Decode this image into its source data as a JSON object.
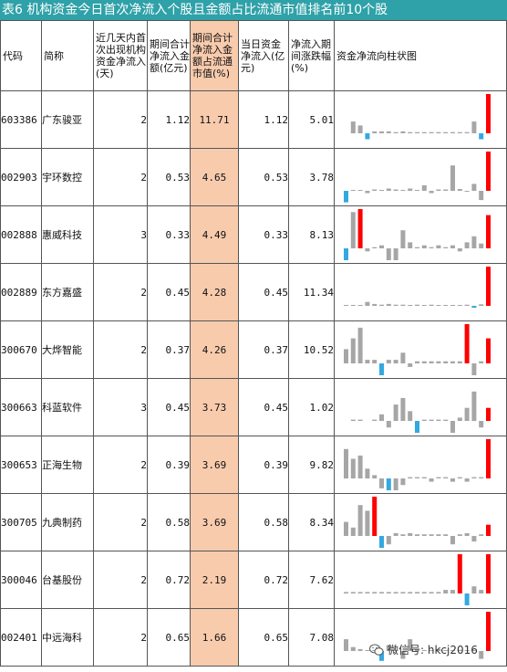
{
  "title": "表6  机构资金今日首次净流入个股且金额占比流通市值排名前10个股",
  "headers": {
    "code": "代码",
    "name": "简称",
    "days": "近几天内首次出现机构资金净流入(天)",
    "period_net": "期间合计净流入金额(亿元)",
    "period_ratio": "期间合计净流入金额占流通市值(%)",
    "today_net": "当日资金净流入(亿元)",
    "period_chg": "净流入期间涨跌幅(%)",
    "chart": "资金净流向柱状图"
  },
  "rows": [
    {
      "code": "603386",
      "name": "广东骏亚",
      "days": "2",
      "period_net": "1.12",
      "period_ratio": "11.71",
      "today_net": "1.12",
      "period_chg": "5.01",
      "bars": [
        0,
        0.3,
        0.2,
        -0.15,
        0.05,
        0.05,
        0.05,
        0.03,
        0.05,
        0.03,
        0.03,
        0.03,
        0.03,
        0.03,
        0.03,
        0.03,
        0.03,
        0.03,
        0.3,
        -0.15,
        1.0
      ]
    },
    {
      "code": "002903",
      "name": "宇环数控",
      "days": "2",
      "period_net": "0.53",
      "period_ratio": "4.65",
      "today_net": "0.53",
      "period_chg": "3.78",
      "bars": [
        -0.25,
        0.02,
        0.02,
        -0.05,
        0.03,
        0.02,
        0.05,
        0.03,
        0.02,
        0.05,
        0.02,
        0.12,
        -0.05,
        0.03,
        0.03,
        0.55,
        0.04,
        -0.02,
        0.15,
        -0.2,
        0.85
      ]
    },
    {
      "code": "002888",
      "name": "惠威科技",
      "days": "3",
      "period_net": "0.33",
      "period_ratio": "4.49",
      "today_net": "0.33",
      "period_chg": "8.13",
      "bars": [
        -0.45,
        0.6,
        0.65,
        -0.05,
        0.02,
        0.05,
        -0.3,
        -0.2,
        0.3,
        0.1,
        0.02,
        0.05,
        0.02,
        0.05,
        0.02,
        0.05,
        -0.05,
        0.1,
        0.2,
        0.08,
        0.55
      ]
    },
    {
      "code": "002889",
      "name": "东方嘉盛",
      "days": "2",
      "period_net": "0.45",
      "period_ratio": "4.28",
      "today_net": "0.45",
      "period_chg": "11.34",
      "bars": [
        0.02,
        0.02,
        0.02,
        0.1,
        0.05,
        0.03,
        0.05,
        0.03,
        0.03,
        0.02,
        0.03,
        0.02,
        0.03,
        0.02,
        0.02,
        0.02,
        0.02,
        0.03,
        -0.05,
        0.04,
        1.0
      ]
    },
    {
      "code": "300670",
      "name": "大烨智能",
      "days": "2",
      "period_net": "0.37",
      "period_ratio": "4.26",
      "today_net": "0.37",
      "period_chg": "10.52",
      "bars": [
        0.2,
        0.35,
        0.5,
        0.05,
        0.05,
        -0.4,
        0.05,
        0.05,
        0.15,
        -0.05,
        0.03,
        0.03,
        0.03,
        0.03,
        0.03,
        0.03,
        0.03,
        0.55,
        -0.35,
        0.03,
        0.35
      ]
    },
    {
      "code": "300663",
      "name": "科蓝软件",
      "days": "3",
      "period_net": "0.45",
      "period_ratio": "3.73",
      "today_net": "0.45",
      "period_chg": "1.02",
      "bars": [
        0,
        0.02,
        0.02,
        0,
        0.02,
        0.1,
        -0.1,
        0.25,
        0.35,
        0.15,
        -0.6,
        0.02,
        0.02,
        0.02,
        0.02,
        -0.2,
        0.05,
        0.2,
        0.45,
        -0.1,
        0.2
      ]
    },
    {
      "code": "300653",
      "name": "正海生物",
      "days": "2",
      "period_net": "0.39",
      "period_ratio": "3.69",
      "today_net": "0.39",
      "period_chg": "9.82",
      "bars": [
        0.45,
        0.3,
        0.35,
        0.15,
        0.05,
        -0.15,
        -0.4,
        -0.25,
        -0.1,
        0.02,
        0.02,
        0.02,
        -0.05,
        0.02,
        0.02,
        -0.05,
        0.02,
        -0.05,
        0.02,
        0.02,
        0.6
      ]
    },
    {
      "code": "300705",
      "name": "九典制药",
      "days": "2",
      "period_net": "0.58",
      "period_ratio": "3.69",
      "today_net": "0.58",
      "period_chg": "8.34",
      "bars": [
        0.25,
        0.15,
        0.55,
        0.45,
        0.7,
        -0.25,
        -0.15,
        0.05,
        0.03,
        0.05,
        0.03,
        0.03,
        0.03,
        0.03,
        0.03,
        -0.15,
        0.03,
        0.05,
        -0.1,
        0.03,
        0.2
      ]
    },
    {
      "code": "300046",
      "name": "台基股份",
      "days": "2",
      "period_net": "0.72",
      "period_ratio": "2.19",
      "today_net": "0.72",
      "period_chg": "7.62",
      "bars": [
        0.02,
        0.02,
        0.02,
        0.02,
        0.02,
        0.02,
        0.02,
        0.02,
        0.02,
        0.02,
        0.02,
        0.02,
        0.02,
        0.02,
        0.05,
        0.05,
        0.55,
        -0.35,
        0.1,
        0.05,
        0.55
      ]
    },
    {
      "code": "002401",
      "name": "中远海科",
      "days": "2",
      "period_net": "0.65",
      "period_ratio": "1.66",
      "today_net": "0.65",
      "period_chg": "7.08",
      "bars": [
        0.3,
        0.1,
        0.05,
        0.02,
        0.02,
        -0.25,
        0.15,
        0.02,
        -0.2,
        0.3,
        0.05,
        0.02,
        0.02,
        0.05,
        0.02,
        0.02,
        0.03,
        0.02,
        0.02,
        -0.2,
        1.0
      ]
    }
  ],
  "colors": {
    "title_bg": "#2fa1a8",
    "highlight": "#f8cbad",
    "bar_gray": "#a6a6a6",
    "bar_blue": "#33a9e0",
    "bar_red": "#ff0000"
  },
  "watermark": {
    "icon": "wechat-icon",
    "text": "微信号: hkcj2016"
  }
}
